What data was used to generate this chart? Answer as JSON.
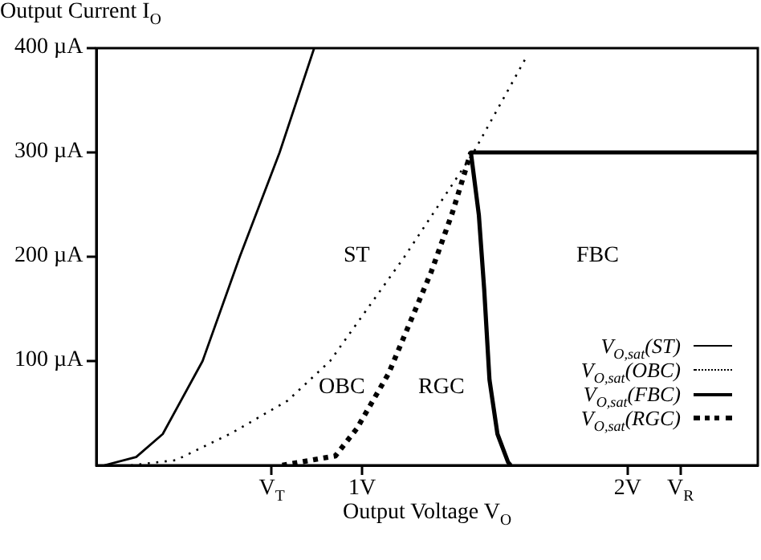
{
  "chart_data": {
    "type": "line",
    "ylabel": "Output Current I$_{O}$",
    "xlabel": "Output Voltage V$_{O}$",
    "xlim": [
      0,
      2.49
    ],
    "ylim": [
      0,
      400
    ],
    "xticks": [
      {
        "value": 0.66,
        "label": "V$_{T}$"
      },
      {
        "value": 1,
        "label": "1V"
      },
      {
        "value": 2,
        "label": "2V"
      },
      {
        "value": 2.2,
        "label": "V$_{R}$"
      }
    ],
    "yticks": [
      {
        "value": 100,
        "label": "100 µA"
      },
      {
        "value": 200,
        "label": "200 µA"
      },
      {
        "value": 300,
        "label": "300 µA"
      },
      {
        "value": 400,
        "label": "400 µA"
      }
    ],
    "grid": false,
    "legend": "bottom right",
    "marker": "none",
    "series": [
      {
        "name": "V$_{O,sat}$(ST)",
        "color": "#000000",
        "line_style": "solid",
        "x": [
          0.03,
          0.15,
          0.25,
          0.4,
          0.54,
          0.69,
          0.82
        ],
        "values": [
          0,
          8,
          30,
          100,
          200,
          300,
          400
        ]
      },
      {
        "name": "V$_{O,sat}$(OBC)",
        "color": "#000000",
        "line_style": "dotted",
        "x": [
          0.13,
          0.3,
          0.51,
          0.72,
          0.88,
          1.16,
          1.42,
          1.62
        ],
        "values": [
          0,
          5,
          31,
          62,
          100,
          200,
          300,
          392
        ]
      },
      {
        "name": "V$_{O,sat}$(FBC)",
        "color": "#000000",
        "line_style": "solid",
        "x": [
          2.49,
          1.41,
          1.44,
          1.46,
          1.48,
          1.51,
          1.55,
          1.56
        ],
        "values": [
          300,
          300,
          240,
          169,
          82,
          30,
          3,
          0
        ]
      },
      {
        "name": "V$_{O,sat}$(RGC)",
        "color": "#000000",
        "line_style": "dotted",
        "x": [
          0.7,
          0.9,
          0.98,
          1.1,
          1.26,
          1.34,
          1.41
        ],
        "values": [
          0,
          9,
          35,
          88,
          185,
          242,
          300
        ]
      }
    ],
    "annotations": [
      "ST",
      "FBC",
      "OBC",
      "RGC"
    ]
  }
}
